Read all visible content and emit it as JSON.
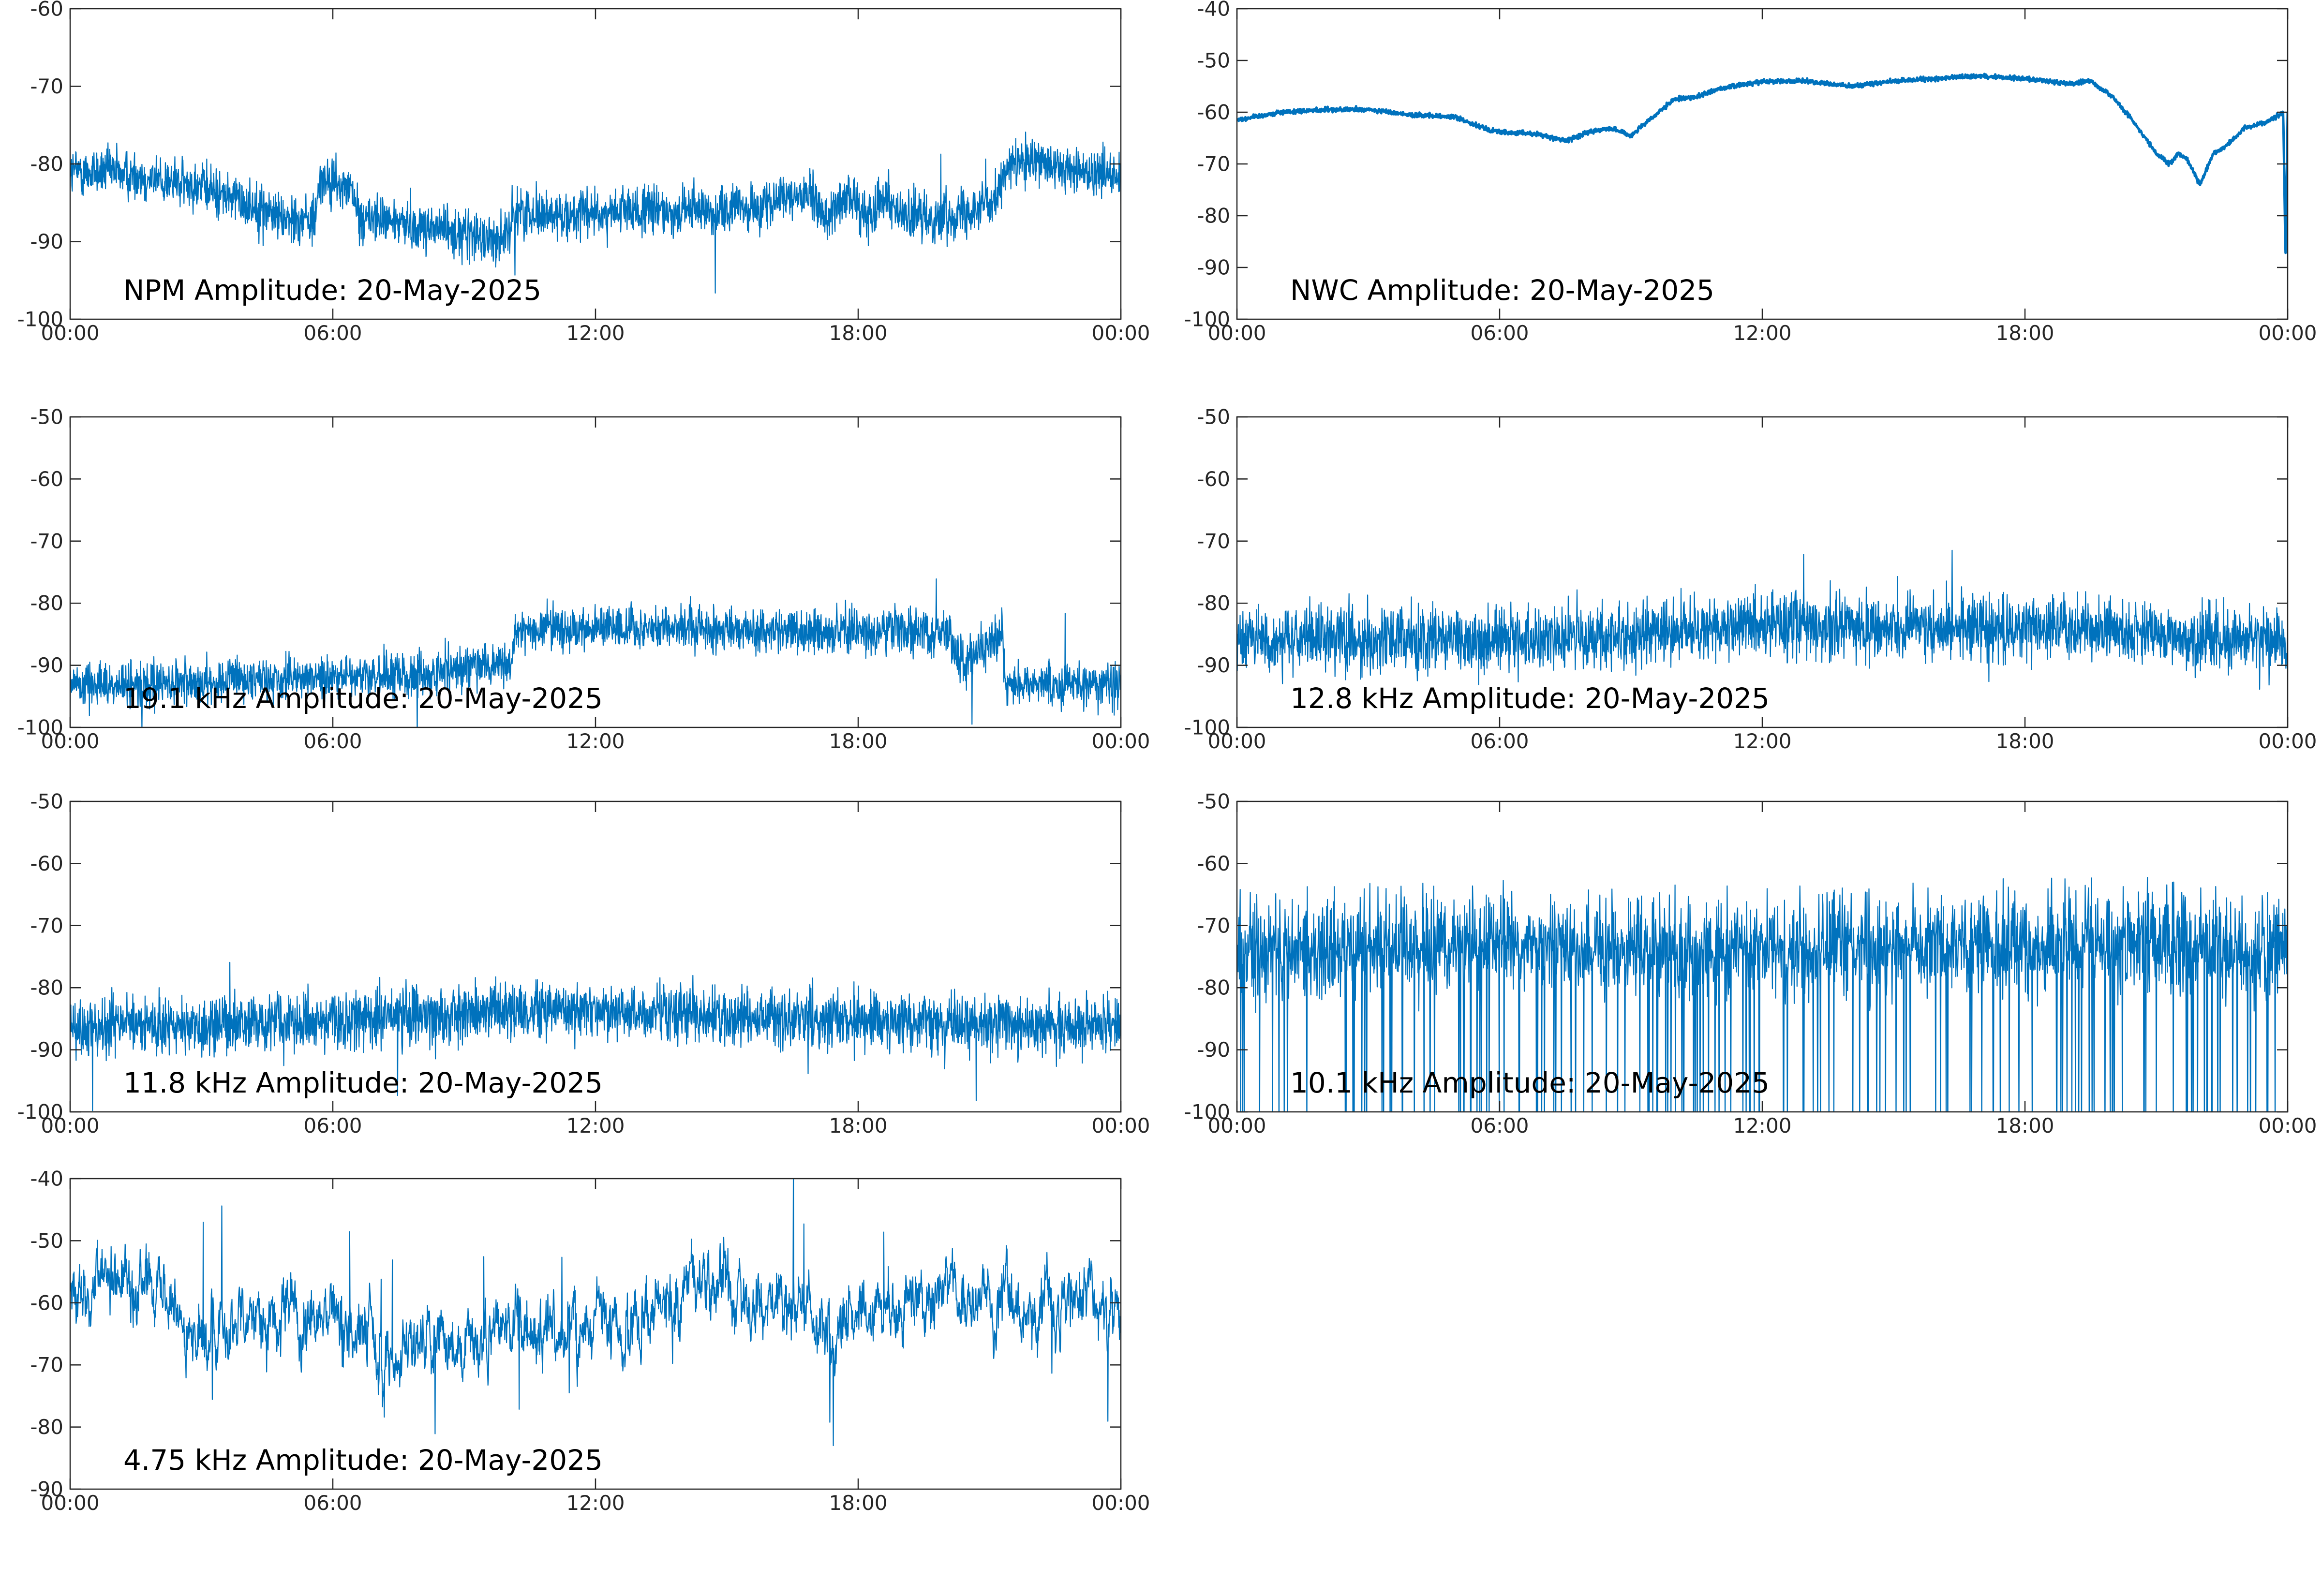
{
  "figure": {
    "x_ticks": [
      "00:00",
      "06:00",
      "12:00",
      "18:00",
      "00:00"
    ],
    "line_color": "#0072BD"
  },
  "chart_data": [
    {
      "type": "line",
      "title": "NPM Amplitude: 20-May-2025",
      "xlabel": "",
      "ylabel": "",
      "xlim": [
        "00:00",
        "24:00"
      ],
      "ylim": [
        -100,
        -60
      ],
      "y_ticks": [
        -60,
        -70,
        -80,
        -90,
        -100
      ],
      "grid": false,
      "series": [
        {
          "style": "noisy",
          "noise": 2.2,
          "spikes": 12,
          "spike_size": 4,
          "x": [
            0,
            1,
            2,
            3,
            4,
            5,
            5.6,
            5.7,
            6.4,
            6.6,
            7,
            8,
            9,
            9.5,
            10,
            10.1,
            11,
            12,
            13,
            14,
            15,
            16,
            16.8,
            17.3,
            17.8,
            18.2,
            18.6,
            19,
            19.5,
            20,
            20.5,
            21,
            21.5,
            22,
            23,
            24
          ],
          "y": [
            -81,
            -81,
            -82,
            -83,
            -85,
            -87,
            -87,
            -82.5,
            -83,
            -87,
            -87,
            -88,
            -89,
            -89.5,
            -89.5,
            -86,
            -86.5,
            -86.5,
            -86,
            -86,
            -86,
            -85.5,
            -83.5,
            -87,
            -84,
            -87,
            -83.5,
            -87,
            -87,
            -86.5,
            -86,
            -85,
            -80,
            -80,
            -81,
            -81
          ]
        }
      ]
    },
    {
      "type": "line",
      "title": "NWC Amplitude: 20-May-2025",
      "xlabel": "",
      "ylabel": "",
      "xlim": [
        "00:00",
        "24:00"
      ],
      "ylim": [
        -100,
        -40
      ],
      "y_ticks": [
        -40,
        -50,
        -60,
        -70,
        -80,
        -90,
        -100
      ],
      "grid": false,
      "series": [
        {
          "style": "smooth",
          "noise": 0.6,
          "spikes": 0,
          "spike_size": 0,
          "x": [
            0,
            1,
            2,
            3,
            4,
            5,
            5.8,
            6.2,
            6.6,
            7,
            7.5,
            8,
            8.5,
            9,
            9.5,
            10,
            10.5,
            11,
            12,
            13,
            14,
            15,
            16,
            17,
            18,
            19,
            19.5,
            20,
            20.5,
            21,
            21.3,
            21.5,
            21.7,
            22,
            22.3,
            22.5,
            22.8,
            23,
            23.5,
            23.9,
            23.95,
            24
          ],
          "y": [
            -61.5,
            -60,
            -59.5,
            -59.5,
            -60.5,
            -61,
            -63.5,
            -64,
            -64,
            -64.5,
            -65.5,
            -64,
            -63,
            -64.5,
            -61,
            -57.5,
            -57,
            -55.5,
            -54,
            -54,
            -55,
            -54,
            -53.5,
            -53,
            -53.5,
            -54.5,
            -54,
            -57,
            -62,
            -68,
            -70,
            -68,
            -69,
            -74,
            -68,
            -67,
            -65,
            -63,
            -62,
            -60,
            -88,
            -60
          ]
        }
      ]
    },
    {
      "type": "line",
      "title": "19.1 kHz Amplitude: 20-May-2025",
      "xlabel": "",
      "ylabel": "",
      "xlim": [
        "00:00",
        "24:00"
      ],
      "ylim": [
        -100,
        -50
      ],
      "y_ticks": [
        -50,
        -60,
        -70,
        -80,
        -90,
        -100
      ],
      "grid": false,
      "series": [
        {
          "style": "noisy",
          "noise": 2.5,
          "spikes": 10,
          "spike_size": 5,
          "x": [
            0,
            2,
            4,
            6,
            8,
            9,
            10.1,
            10.15,
            12,
            14,
            16,
            18,
            20,
            20.4,
            21.3,
            21.35,
            22,
            23,
            24
          ],
          "y": [
            -93,
            -93,
            -92.5,
            -92,
            -91.5,
            -90.5,
            -89.5,
            -84,
            -84,
            -84,
            -84.5,
            -84.5,
            -84.5,
            -90,
            -84.5,
            -93,
            -93,
            -93,
            -93
          ]
        }
      ]
    },
    {
      "type": "line",
      "title": "12.8 kHz Amplitude: 20-May-2025",
      "xlabel": "",
      "ylabel": "",
      "xlim": [
        "00:00",
        "24:00"
      ],
      "ylim": [
        -100,
        -50
      ],
      "y_ticks": [
        -50,
        -60,
        -70,
        -80,
        -90,
        -100
      ],
      "grid": false,
      "series": [
        {
          "style": "noisy",
          "noise": 3.6,
          "spikes": 14,
          "spike_size": 5,
          "x": [
            0,
            3,
            6,
            9,
            12,
            15,
            18,
            21,
            24
          ],
          "y": [
            -86,
            -86,
            -86,
            -85,
            -83.5,
            -84,
            -84,
            -85,
            -86
          ]
        }
      ]
    },
    {
      "type": "line",
      "title": "11.8 kHz Amplitude: 20-May-2025",
      "xlabel": "",
      "ylabel": "",
      "xlim": [
        "00:00",
        "24:00"
      ],
      "ylim": [
        -100,
        -50
      ],
      "y_ticks": [
        -50,
        -60,
        -70,
        -80,
        -90,
        -100
      ],
      "grid": false,
      "series": [
        {
          "style": "noisy",
          "noise": 3.2,
          "spikes": 16,
          "spike_size": 6,
          "x": [
            0,
            3,
            6,
            9,
            12,
            15,
            18,
            21,
            24
          ],
          "y": [
            -86,
            -86,
            -85.5,
            -84,
            -83.5,
            -85,
            -85,
            -86,
            -86
          ]
        }
      ]
    },
    {
      "type": "line",
      "title": "10.1 kHz Amplitude: 20-May-2025",
      "xlabel": "",
      "ylabel": "",
      "xlim": [
        "00:00",
        "24:00"
      ],
      "ylim": [
        -100,
        -50
      ],
      "y_ticks": [
        -50,
        -60,
        -70,
        -80,
        -90,
        -100
      ],
      "grid": false,
      "series": [
        {
          "style": "dropouts",
          "noise": 5,
          "spikes": 0,
          "spike_size": 0,
          "x": [
            0,
            3,
            6,
            9,
            12,
            15,
            18,
            21,
            24
          ],
          "y": [
            -75,
            -74,
            -73,
            -74,
            -74,
            -74,
            -73,
            -73,
            -75
          ]
        }
      ]
    },
    {
      "type": "line",
      "title": "4.75 kHz Amplitude: 20-May-2025",
      "xlabel": "",
      "ylabel": "",
      "xlim": [
        "00:00",
        "24:00"
      ],
      "ylim": [
        -90,
        -40
      ],
      "y_ticks": [
        -40,
        -50,
        -60,
        -70,
        -80,
        -90
      ],
      "grid": false,
      "series": [
        {
          "style": "wild",
          "noise": 4,
          "spikes": 10,
          "spike_size": 10,
          "x": [
            0,
            1,
            2,
            2.5,
            3,
            4,
            5,
            6,
            7,
            7.5,
            8,
            9,
            10,
            11,
            12,
            13,
            14,
            15,
            16,
            17,
            17.5,
            18,
            19,
            20,
            21,
            22,
            23,
            24
          ],
          "y": [
            -58,
            -57,
            -57,
            -63,
            -67,
            -62,
            -64,
            -62,
            -68,
            -70,
            -64,
            -68,
            -63,
            -65,
            -62,
            -63,
            -58,
            -58,
            -60,
            -62,
            -66,
            -62,
            -60,
            -58,
            -60,
            -63,
            -59,
            -60
          ]
        }
      ]
    }
  ]
}
